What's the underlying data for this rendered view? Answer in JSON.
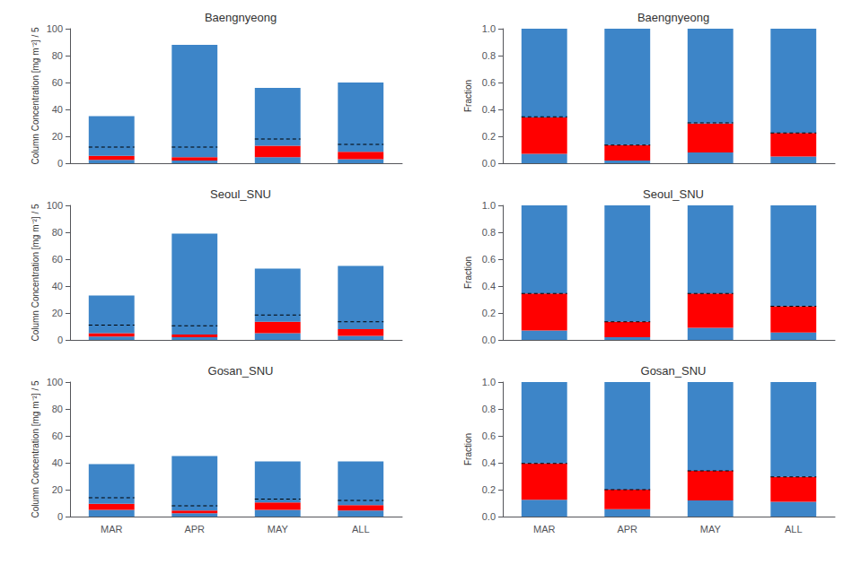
{
  "chart_data": [
    {
      "type": "bar",
      "stacked": true,
      "title": "Baengnyeong",
      "categories": [
        null,
        null,
        null,
        null
      ],
      "ylabel": "Column Concentration [mg m⁻²] / 5",
      "ylim": [
        0,
        100
      ],
      "yticks": [
        0,
        20,
        40,
        60,
        80,
        100
      ],
      "grid": false,
      "series": [
        {
          "color": "#3D85C8",
          "values": [
            2.5,
            2.0,
            4.5,
            3.0
          ]
        },
        {
          "color": "#FF0000",
          "values": [
            3.0,
            2.5,
            8.5,
            5.5
          ]
        },
        {
          "color": "#3D85C8",
          "values": [
            29.5,
            83.5,
            43.0,
            51.5
          ]
        },
        {
          "type": "line",
          "line_style": "dashed",
          "color": "#000000",
          "values": [
            12.0,
            12.0,
            18.0,
            14.0
          ]
        }
      ]
    },
    {
      "type": "bar",
      "stacked": true,
      "title": "Baengnyeong",
      "categories": [
        null,
        null,
        null,
        null
      ],
      "ylabel": "Fraction",
      "ylim": [
        0,
        1.0
      ],
      "yticks": [
        {
          "value": 0,
          "label": "0.0"
        },
        0.2,
        0.4,
        0.6,
        0.8,
        {
          "value": 1.0,
          "label": "1.0"
        }
      ],
      "grid": false,
      "series": [
        {
          "color": "#3D85C8",
          "values": [
            0.07,
            0.02,
            0.08,
            0.05
          ]
        },
        {
          "color": "#FF0000",
          "values": [
            0.27,
            0.115,
            0.215,
            0.175
          ]
        },
        {
          "color": "#3D85C8",
          "values": [
            0.66,
            0.865,
            0.705,
            0.775
          ]
        },
        {
          "type": "line",
          "line_style": "dashed",
          "color": "#000000",
          "values": [
            0.345,
            0.135,
            0.3,
            0.225
          ]
        }
      ]
    },
    {
      "type": "bar",
      "stacked": true,
      "title": "Seoul_SNU",
      "categories": [
        null,
        null,
        null,
        null
      ],
      "ylabel": "Column Concentration [mg m⁻²] / 5",
      "ylim": [
        0,
        100
      ],
      "yticks": [
        0,
        20,
        40,
        60,
        80,
        100
      ],
      "grid": false,
      "series": [
        {
          "color": "#3D85C8",
          "values": [
            2.5,
            2.0,
            5.0,
            3.0
          ]
        },
        {
          "color": "#FF0000",
          "values": [
            2.5,
            2.0,
            8.5,
            5.0
          ]
        },
        {
          "color": "#3D85C8",
          "values": [
            28.0,
            75.0,
            39.5,
            47.0
          ]
        },
        {
          "type": "line",
          "line_style": "dashed",
          "color": "#000000",
          "values": [
            11.0,
            10.5,
            18.5,
            13.5
          ]
        }
      ]
    },
    {
      "type": "bar",
      "stacked": true,
      "title": "Seoul_SNU",
      "categories": [
        null,
        null,
        null,
        null
      ],
      "ylabel": "Fraction",
      "ylim": [
        0,
        1.0
      ],
      "yticks": [
        {
          "value": 0,
          "label": "0.0"
        },
        0.2,
        0.4,
        0.6,
        0.8,
        {
          "value": 1.0,
          "label": "1.0"
        }
      ],
      "grid": false,
      "series": [
        {
          "color": "#3D85C8",
          "values": [
            0.07,
            0.02,
            0.09,
            0.055
          ]
        },
        {
          "color": "#FF0000",
          "values": [
            0.275,
            0.115,
            0.255,
            0.195
          ]
        },
        {
          "color": "#3D85C8",
          "values": [
            0.655,
            0.865,
            0.655,
            0.75
          ]
        },
        {
          "type": "line",
          "line_style": "dashed",
          "color": "#000000",
          "values": [
            0.345,
            0.135,
            0.345,
            0.25
          ]
        }
      ]
    },
    {
      "type": "bar",
      "stacked": true,
      "title": "Gosan_SNU",
      "categories": [
        "MAR",
        "APR",
        "MAY",
        "ALL"
      ],
      "ylabel": "Column Concentration [mg m⁻²] / 5",
      "ylim": [
        0,
        100
      ],
      "yticks": [
        0,
        20,
        40,
        60,
        80,
        100
      ],
      "grid": false,
      "series": [
        {
          "color": "#3D85C8",
          "values": [
            5.0,
            2.5,
            5.0,
            4.5
          ]
        },
        {
          "color": "#FF0000",
          "values": [
            4.5,
            2.0,
            5.5,
            4.0
          ]
        },
        {
          "color": "#3D85C8",
          "values": [
            29.5,
            40.5,
            30.5,
            32.5
          ]
        },
        {
          "type": "line",
          "line_style": "dashed",
          "color": "#000000",
          "values": [
            14.0,
            8.0,
            13.0,
            12.0
          ]
        }
      ]
    },
    {
      "type": "bar",
      "stacked": true,
      "title": "Gosan_SNU",
      "categories": [
        "MAR",
        "APR",
        "MAY",
        "ALL"
      ],
      "ylabel": "Fraction",
      "ylim": [
        0,
        1.0
      ],
      "yticks": [
        {
          "value": 0,
          "label": "0.0"
        },
        0.2,
        0.4,
        0.6,
        0.8,
        {
          "value": 1.0,
          "label": "1.0"
        }
      ],
      "grid": false,
      "series": [
        {
          "color": "#3D85C8",
          "values": [
            0.125,
            0.055,
            0.12,
            0.11
          ]
        },
        {
          "color": "#FF0000",
          "values": [
            0.27,
            0.145,
            0.22,
            0.185
          ]
        },
        {
          "color": "#3D85C8",
          "values": [
            0.605,
            0.8,
            0.66,
            0.705
          ]
        },
        {
          "type": "line",
          "line_style": "dashed",
          "color": "#000000",
          "values": [
            0.395,
            0.2,
            0.34,
            0.295
          ]
        }
      ]
    }
  ]
}
